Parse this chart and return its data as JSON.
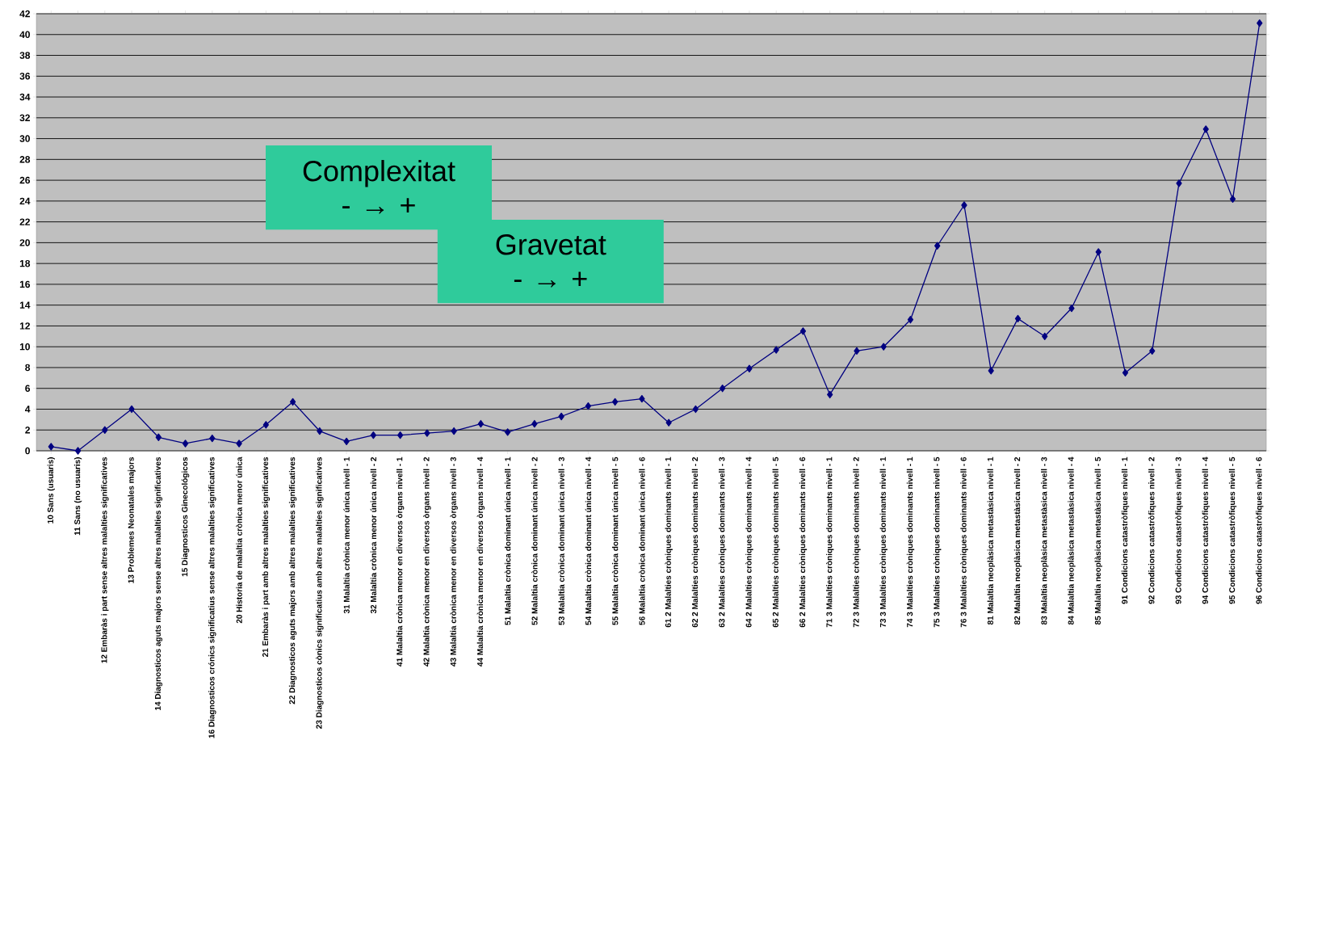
{
  "chart_data": {
    "type": "line",
    "categories": [
      "10 Sans (usuaris)",
      "11 Sans (no usuaris)",
      "12 Embaràs i part sense altres malalties significatives",
      "13 Problemes Neonatales majors",
      "14 Diagnosticos aguts majors sense altres malalties significatives",
      "15 Diagnosticos Ginecológicos",
      "16 Diagnosticos crónics significatius sense altres malalties significatives",
      "20 Historia de malaltia crònica menor única",
      "21 Embaràs i part amb altres malalties significatives",
      "22 Diagnosticos aguts majors amb altres malalties significatives",
      "23 Diagnosticos cònics significatius amb altres malalties significatives",
      "31 Malaltia crònica menor única nivell - 1",
      "32 Malaltia crònica menor única nivell - 2",
      "41 Malaltia crònica menor en diversos òrgans nivell - 1",
      "42 Malaltia crònica menor en diversos òrgans nivell - 2",
      "43 Malaltia crònica menor en diversos òrgans nivell - 3",
      "44 Malaltia crònica menor en diversos òrgans nivell - 4",
      "51 Malaltia crònica dominant única nivell - 1",
      "52 Malaltia crònica dominant única nivell - 2",
      "53 Malaltia crònica dominant única nivell - 3",
      "54 Malaltia crònica dominant única nivell - 4",
      "55 Malaltia crònica dominant única nivell - 5",
      "56 Malaltia crònica dominant única nivell - 6",
      "61 2 Malalties cròniques dominants nivell - 1",
      "62 2 Malalties cròniques dominants nivell - 2",
      "63 2 Malalties cròniques dominants nivell - 3",
      "64 2 Malalties cròniques dominants nivell - 4",
      "65 2 Malalties cròniques dominants nivell - 5",
      "66 2 Malalties cròniques dominants nivell - 6",
      "71 3 Malalties cròniques dominants nivell - 1",
      "72 3 Malalties cròniques dominants nivell - 2",
      "73 3 Malalties cròniques dominants nivell - 1",
      "74 3 Malalties cròniques dominants nivell - 1",
      "75 3 Malalties cròniques dominants nivell - 5",
      "76 3 Malalties cròniques dominants nivell - 6",
      "81 Malaltia neoplàsica metastàsica nivell - 1",
      "82 Malaltia neoplàsica metastàsica nivell - 2",
      "83 Malaltia neoplàsica metastàsica nivell - 3",
      "84 Malaltia neoplàsica metastàsica nivell - 4",
      "85 Malaltia neoplàsica metastàsica nivell - 5",
      "91 Condicions catastròfiques nivell - 1",
      "92 Condicions catastròfiques nivell - 2",
      "93 Condicions catastròfiques nivell - 3",
      "94 Condicions catastròfiques nivell - 4",
      "95 Condicions catastròfiques nivell - 5",
      "96 Condicions catastròfiques nivell - 6"
    ],
    "values": [
      0.4,
      0,
      2.0,
      4.0,
      1.3,
      0.7,
      1.2,
      0.7,
      2.5,
      4.7,
      1.9,
      0.9,
      1.5,
      1.5,
      1.7,
      1.9,
      2.6,
      1.8,
      2.6,
      3.3,
      4.3,
      4.7,
      5.0,
      2.7,
      4.0,
      6.0,
      7.9,
      9.7,
      11.5,
      5.4,
      9.6,
      10.0,
      12.6,
      19.7,
      23.6,
      7.7,
      12.7,
      11.0,
      13.7,
      19.1,
      7.5,
      9.6,
      25.7,
      30.9,
      24.2,
      41.1
    ],
    "color": "#000080",
    "marker": "diamond",
    "ylim": [
      0,
      42
    ],
    "yticks": [
      0,
      2,
      4,
      6,
      8,
      10,
      12,
      14,
      16,
      18,
      20,
      22,
      24,
      26,
      28,
      30,
      32,
      34,
      36,
      38,
      40,
      42
    ],
    "grid": "y",
    "annotations": [
      "Complexitat - → +",
      "Gravetat - → +"
    ]
  }
}
